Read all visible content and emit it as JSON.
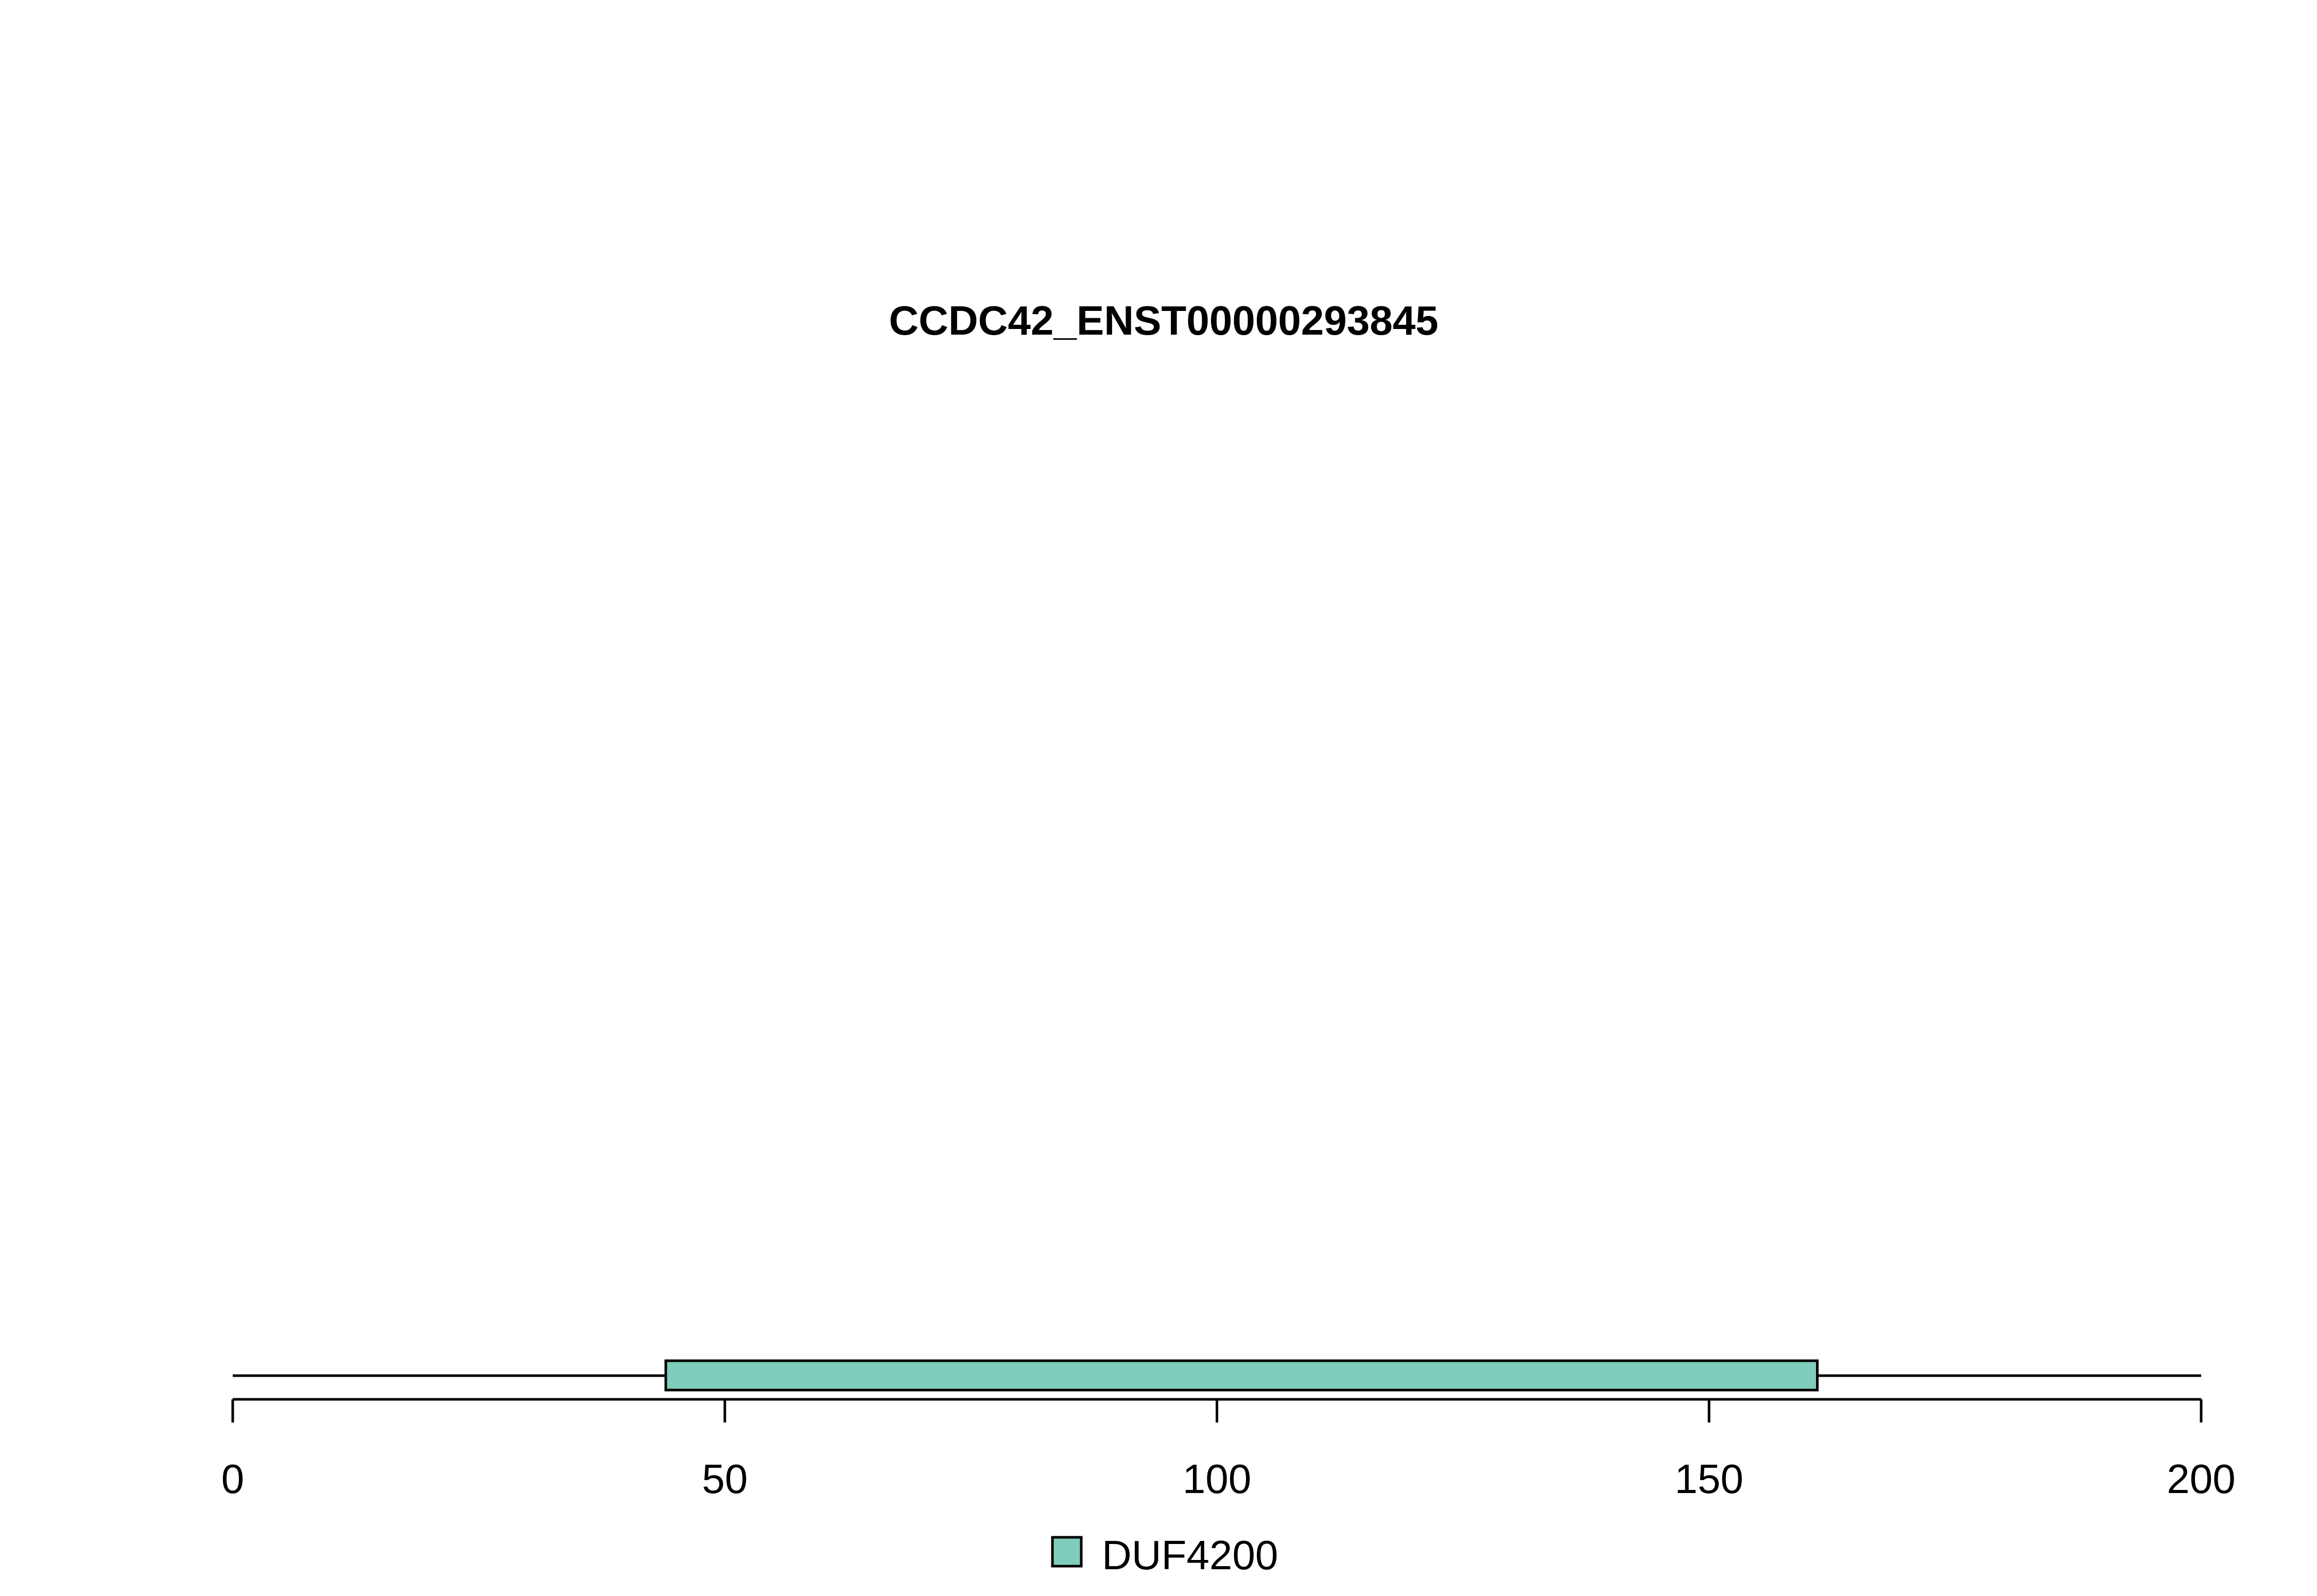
{
  "chart_data": {
    "type": "domain-architecture",
    "title": "CCDC42_ENST00000293845",
    "xlim": [
      0,
      200
    ],
    "x_ticks": [
      0,
      50,
      100,
      150,
      200
    ],
    "tick_labels": [
      "0",
      "50",
      "100",
      "150",
      "200"
    ],
    "protein_length": 200,
    "domains": [
      {
        "name": "DUF4200",
        "start": 44,
        "end": 161,
        "color": "#7FCDBB"
      }
    ],
    "legend": [
      {
        "label": "DUF4200",
        "color": "#7FCDBB"
      }
    ],
    "legend_position": "bottom-center"
  }
}
